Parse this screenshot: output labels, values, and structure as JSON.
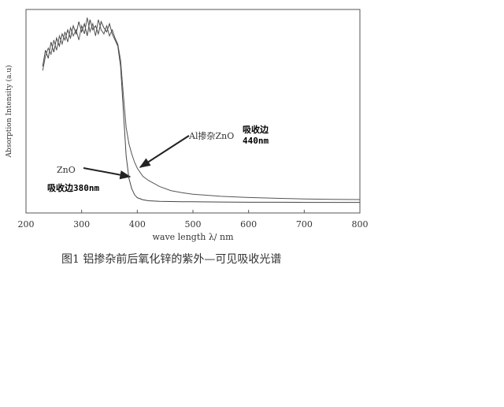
{
  "chart_data": {
    "type": "line",
    "y_label": "Absorption Intensity (a.u)",
    "x_label": "wave length λ/ nm",
    "caption": "图1  铝掺杂前后氧化锌的紫外—可见吸收光谱",
    "x": [
      230,
      235,
      240,
      245,
      250,
      255,
      260,
      265,
      270,
      275,
      280,
      285,
      290,
      295,
      300,
      305,
      310,
      315,
      320,
      325,
      330,
      335,
      340,
      345,
      350,
      355,
      360,
      365,
      370,
      375,
      380,
      385,
      390,
      395,
      400,
      410,
      420,
      440,
      460,
      480,
      500,
      550,
      600,
      650,
      700,
      750,
      800
    ],
    "series": [
      {
        "name": "ZnO",
        "color": "#444444",
        "values": [
          0.72,
          0.8,
          0.76,
          0.84,
          0.79,
          0.86,
          0.82,
          0.88,
          0.85,
          0.9,
          0.86,
          0.92,
          0.88,
          0.94,
          0.89,
          0.93,
          0.87,
          0.95,
          0.9,
          0.92,
          0.88,
          0.94,
          0.91,
          0.89,
          0.93,
          0.88,
          0.85,
          0.82,
          0.72,
          0.5,
          0.28,
          0.17,
          0.12,
          0.09,
          0.075,
          0.065,
          0.06,
          0.057,
          0.056,
          0.055,
          0.055,
          0.054,
          0.053,
          0.053,
          0.052,
          0.052,
          0.052
        ]
      },
      {
        "name": "Al掺杂ZnO",
        "color": "#555555",
        "values": [
          0.7,
          0.77,
          0.81,
          0.78,
          0.85,
          0.8,
          0.87,
          0.83,
          0.89,
          0.84,
          0.91,
          0.87,
          0.9,
          0.85,
          0.92,
          0.88,
          0.96,
          0.89,
          0.93,
          0.87,
          0.95,
          0.9,
          0.88,
          0.92,
          0.87,
          0.9,
          0.86,
          0.83,
          0.75,
          0.58,
          0.42,
          0.34,
          0.29,
          0.25,
          0.22,
          0.18,
          0.16,
          0.13,
          0.11,
          0.1,
          0.092,
          0.082,
          0.076,
          0.072,
          0.069,
          0.067,
          0.066
        ]
      }
    ],
    "annotations": [
      "吸收边380nm",
      "吸收边",
      "440nm"
    ],
    "xlim": [
      200,
      800
    ],
    "xticks": [
      200,
      300,
      400,
      500,
      600,
      700,
      800
    ],
    "ylim": [
      0,
      1
    ]
  }
}
